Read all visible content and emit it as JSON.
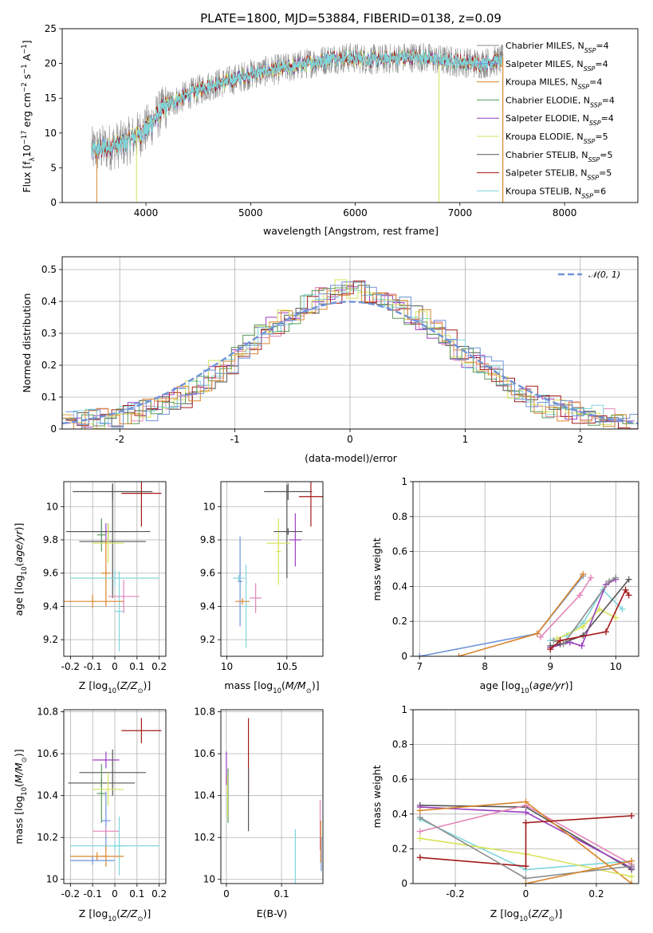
{
  "colors": {
    "chabrier_miles": "#8c8c8c",
    "salpeter_miles": "#6f93d8",
    "kroupa_miles": "#d9862c",
    "chabrier_elodie": "#5d9a5d",
    "salpeter_elodie": "#9a3fc0",
    "kroupa_elodie": "#d7e35a",
    "chabrier_stelib": "#555555",
    "salpeter_stelib": "#a31a1a",
    "kroupa_stelib": "#7fd6db",
    "pink": "#e384b8",
    "normal_curve": "#6f93d8"
  },
  "chart_data": [
    {
      "id": "spectrum",
      "type": "line",
      "title": "PLATE=1800, MJD=53884, FIBERID=0138, z=0.09",
      "xlabel": "wavelength [Angstrom, rest frame]",
      "ylabel": "Flux [f_λ10^-17 erg cm^-2 s^-1 A^-1]",
      "xlim": [
        3200,
        8700
      ],
      "ylim": [
        0,
        25
      ],
      "xticks": [
        4000,
        5000,
        6000,
        7000,
        8000
      ],
      "yticks": [
        0,
        5,
        10,
        15,
        20,
        25
      ],
      "grid": false,
      "legend_position": "top-right",
      "continuum": {
        "x": [
          3500,
          3800,
          4000,
          4200,
          4400,
          4600,
          4800,
          5000,
          5200,
          5400,
          5600,
          5800,
          6000,
          6200,
          6400,
          6600,
          6800,
          7000,
          7200,
          7400
        ],
        "y": [
          7.5,
          8.5,
          10.5,
          14.0,
          15.5,
          16.8,
          17.5,
          18.5,
          19.0,
          19.5,
          20.2,
          20.8,
          20.8,
          20.5,
          20.8,
          21.0,
          20.5,
          20.2,
          20.0,
          20.5
        ]
      },
      "series": [
        {
          "name": "Chabrier MILES, N_SSP=4",
          "key": "chabrier_miles"
        },
        {
          "name": "Salpeter MILES, N_SSP=4",
          "key": "salpeter_miles"
        },
        {
          "name": "Kroupa MILES, N_SSP=4",
          "key": "kroupa_miles"
        },
        {
          "name": "Chabrier ELODIE, N_SSP=4",
          "key": "chabrier_elodie"
        },
        {
          "name": "Salpeter ELODIE, N_SSP=4",
          "key": "salpeter_elodie"
        },
        {
          "name": "Kroupa ELODIE, N_SSP=5",
          "key": "kroupa_elodie"
        },
        {
          "name": "Chabrier STELIB, N_SSP=5",
          "key": "chabrier_stelib"
        },
        {
          "name": "Salpeter STELIB, N_SSP=5",
          "key": "salpeter_stelib"
        },
        {
          "name": "Kroupa STELIB, N_SSP=6",
          "key": "kroupa_stelib"
        }
      ]
    },
    {
      "id": "residuals",
      "type": "step",
      "xlabel": "(data-model)/error",
      "ylabel": "Normed distribution",
      "xlim": [
        -2.5,
        2.5
      ],
      "ylim": [
        0,
        0.54
      ],
      "xticks": [
        -2,
        -1,
        0,
        1,
        2
      ],
      "yticks": [
        0.0,
        0.1,
        0.2,
        0.3,
        0.4,
        0.5
      ],
      "grid": true,
      "legend_position": "top-right",
      "legend": [
        "𝒩(0, 1)"
      ],
      "bin_width": 0.1,
      "profile": [
        0.02,
        0.025,
        0.03,
        0.035,
        0.04,
        0.045,
        0.05,
        0.06,
        0.07,
        0.08,
        0.1,
        0.12,
        0.15,
        0.18,
        0.2,
        0.23,
        0.27,
        0.3,
        0.32,
        0.34,
        0.36,
        0.39,
        0.41,
        0.42,
        0.44,
        0.44,
        0.42,
        0.4,
        0.39,
        0.38,
        0.36,
        0.34,
        0.31,
        0.28,
        0.25,
        0.22,
        0.2,
        0.18,
        0.15,
        0.12,
        0.1,
        0.08,
        0.07,
        0.06,
        0.05,
        0.045,
        0.04,
        0.03,
        0.025,
        0.02
      ]
    },
    {
      "id": "age_vs_z",
      "type": "errorbar",
      "xlabel": "Z [log10(Z/Z☉)]",
      "ylabel": "age [log10(age/yr)]",
      "xlim": [
        -0.23,
        0.23
      ],
      "ylim": [
        9.1,
        10.15
      ],
      "xticks": [
        -0.2,
        -0.1,
        0.0,
        0.1,
        0.2
      ],
      "yticks": [
        9.2,
        9.4,
        9.6,
        9.8,
        10.0
      ],
      "grid": true,
      "points": [
        {
          "key": "chabrier_stelib",
          "x": -0.01,
          "xerr": 0.18,
          "y": 10.09,
          "yerr": 0.05
        },
        {
          "key": "salpeter_stelib",
          "x": 0.12,
          "xerr": 0.09,
          "y": 10.08,
          "yerr": 0.2
        },
        {
          "key": "salpeter_miles",
          "x": -0.06,
          "xerr": 0.15,
          "y": 9.85,
          "yerr": 0.06
        },
        {
          "key": "salpeter_elodie",
          "x": -0.04,
          "xerr": 0.06,
          "y": 9.85,
          "yerr": 0.05
        },
        {
          "key": "chabrier_elodie",
          "x": -0.06,
          "xerr": 0.02,
          "y": 9.83,
          "yerr": 0.1
        },
        {
          "key": "chabrier_stelib",
          "x": -0.03,
          "xerr": 0.19,
          "y": 9.85,
          "yerr": 0.05
        },
        {
          "key": "chabrier_stelib",
          "x": -0.01,
          "xerr": 0.15,
          "y": 9.79,
          "yerr": 0.34
        },
        {
          "key": "kroupa_elodie",
          "x": -0.03,
          "xerr": 0.07,
          "y": 9.78,
          "yerr": 0.12
        },
        {
          "key": "kroupa_miles",
          "x": -0.04,
          "xerr": 0.02,
          "y": 9.6,
          "yerr": 0.2
        },
        {
          "key": "kroupa_stelib",
          "x": 0.0,
          "xerr": 0.2,
          "y": 9.57,
          "yerr": 0.05
        },
        {
          "key": "kroupa_stelib",
          "x": 0.02,
          "xerr": 0.02,
          "y": 9.37,
          "yerr": 0.24
        },
        {
          "key": "pink",
          "x": 0.04,
          "xerr": 0.07,
          "y": 9.46,
          "yerr": 0.1
        },
        {
          "key": "kroupa_miles",
          "x": -0.1,
          "xerr": 0.14,
          "y": 9.43,
          "yerr": 0.04
        }
      ]
    },
    {
      "id": "age_vs_mass",
      "type": "errorbar",
      "xlabel": "mass [log10(M/M☉)]",
      "ylabel": "",
      "xlim": [
        9.95,
        10.8
      ],
      "ylim": [
        9.1,
        10.15
      ],
      "xticks": [
        10.0,
        10.5
      ],
      "yticks": [
        9.2,
        9.4,
        9.6,
        9.8,
        10.0
      ],
      "grid": true,
      "points": [
        {
          "key": "chabrier_stelib",
          "x": 10.51,
          "xerr": 0.2,
          "y": 10.09,
          "yerr": 0.05
        },
        {
          "key": "salpeter_stelib",
          "x": 10.7,
          "xerr": 0.1,
          "y": 10.06,
          "yerr": 0.18
        },
        {
          "key": "chabrier_stelib",
          "x": 10.5,
          "xerr": 0.02,
          "y": 9.85,
          "yerr": 0.28
        },
        {
          "key": "salpeter_elodie",
          "x": 10.57,
          "xerr": 0.05,
          "y": 9.8,
          "yerr": 0.16
        },
        {
          "key": "kroupa_elodie",
          "x": 10.43,
          "xerr": 0.02,
          "y": 9.73,
          "yerr": 0.2
        },
        {
          "key": "chabrier_stelib",
          "x": 10.51,
          "xerr": 0.12,
          "y": 9.85,
          "yerr": 0.02
        },
        {
          "key": "kroupa_elodie",
          "x": 10.43,
          "xerr": 0.1,
          "y": 9.78,
          "yerr": 0.02
        },
        {
          "key": "salpeter_miles",
          "x": 10.11,
          "xerr": 0.02,
          "y": 9.55,
          "yerr": 0.27
        },
        {
          "key": "kroupa_stelib",
          "x": 10.16,
          "xerr": 0.02,
          "y": 9.4,
          "yerr": 0.25
        },
        {
          "key": "kroupa_stelib",
          "x": 10.1,
          "xerr": 0.05,
          "y": 9.57,
          "yerr": 0.02
        },
        {
          "key": "pink",
          "x": 10.24,
          "xerr": 0.05,
          "y": 9.45,
          "yerr": 0.09
        },
        {
          "key": "kroupa_miles",
          "x": 10.13,
          "xerr": 0.06,
          "y": 9.43,
          "yerr": 0.02
        }
      ]
    },
    {
      "id": "weight_vs_age",
      "type": "line",
      "xlabel": "age [log10(age/yr)]",
      "ylabel": "mass weight",
      "xlim": [
        6.9,
        10.35
      ],
      "ylim": [
        0,
        1
      ],
      "xticks": [
        7,
        8,
        9,
        10
      ],
      "yticks": [
        0.0,
        0.2,
        0.4,
        0.6,
        0.8,
        1.0
      ],
      "grid": true,
      "series": [
        {
          "key": "salpeter_miles",
          "x": [
            7.0,
            8.8,
            9.5
          ],
          "y": [
            0.0,
            0.13,
            0.46
          ]
        },
        {
          "key": "kroupa_miles",
          "x": [
            7.6,
            8.8,
            9.5
          ],
          "y": [
            0.0,
            0.13,
            0.47
          ]
        },
        {
          "key": "pink",
          "x": [
            8.85,
            9.45,
            9.62
          ],
          "y": [
            0.11,
            0.35,
            0.45
          ]
        },
        {
          "key": "kroupa_stelib",
          "x": [
            9.0,
            9.25,
            9.5,
            9.8,
            10.1
          ],
          "y": [
            0.09,
            0.12,
            0.19,
            0.38,
            0.27
          ]
        },
        {
          "key": "kroupa_elodie",
          "x": [
            9.1,
            9.5,
            9.75,
            10.0
          ],
          "y": [
            0.1,
            0.17,
            0.27,
            0.22
          ]
        },
        {
          "key": "salpeter_elodie",
          "x": [
            9.0,
            9.3,
            9.48,
            9.85,
            10.0
          ],
          "y": [
            0.05,
            0.08,
            0.06,
            0.41,
            0.44
          ]
        },
        {
          "key": "chabrier_stelib",
          "x": [
            9.0,
            9.15,
            9.5,
            10.2
          ],
          "y": [
            0.06,
            0.07,
            0.12,
            0.44
          ]
        },
        {
          "key": "chabrier_miles",
          "x": [
            9.05,
            9.2,
            9.9,
            10.0
          ],
          "y": [
            0.09,
            0.07,
            0.43,
            0.45
          ]
        },
        {
          "key": "salpeter_stelib",
          "x": [
            9.0,
            9.15,
            9.85,
            10.15,
            10.2
          ],
          "y": [
            0.04,
            0.09,
            0.14,
            0.38,
            0.35
          ]
        }
      ]
    },
    {
      "id": "mass_vs_z",
      "type": "errorbar",
      "xlabel": "Z [log10(Z/Z☉)]",
      "ylabel": "mass [log10(M/M☉)]",
      "xlim": [
        -0.23,
        0.23
      ],
      "ylim": [
        9.98,
        10.81
      ],
      "xticks": [
        -0.2,
        -0.1,
        0.0,
        0.1,
        0.2
      ],
      "yticks": [
        10.0,
        10.2,
        10.4,
        10.6,
        10.8
      ],
      "grid": true,
      "points": [
        {
          "key": "salpeter_stelib",
          "x": 0.12,
          "xerr": 0.09,
          "y": 10.71,
          "yerr": 0.06
        },
        {
          "key": "salpeter_elodie",
          "x": -0.04,
          "xerr": 0.06,
          "y": 10.57,
          "yerr": 0.04
        },
        {
          "key": "chabrier_stelib",
          "x": -0.01,
          "xerr": 0.15,
          "y": 10.51,
          "yerr": 0.11
        },
        {
          "key": "chabrier_stelib",
          "x": -0.06,
          "xerr": 0.15,
          "y": 10.46,
          "yerr": 0.02
        },
        {
          "key": "chabrier_elodie",
          "x": -0.06,
          "xerr": 0.02,
          "y": 10.41,
          "yerr": 0.14
        },
        {
          "key": "kroupa_elodie",
          "x": -0.03,
          "xerr": 0.07,
          "y": 10.43,
          "yerr": 0.08
        },
        {
          "key": "salpeter_miles",
          "x": -0.04,
          "xerr": 0.02,
          "y": 10.28,
          "yerr": 0.14
        },
        {
          "key": "pink",
          "x": -0.04,
          "xerr": 0.06,
          "y": 10.23,
          "yerr": 0.02
        },
        {
          "key": "kroupa_stelib",
          "x": 0.02,
          "xerr": 0.02,
          "y": 10.16,
          "yerr": 0.14
        },
        {
          "key": "kroupa_stelib",
          "x": 0.0,
          "xerr": 0.2,
          "y": 10.16,
          "yerr": 0.02
        },
        {
          "key": "kroupa_miles",
          "x": -0.04,
          "xerr": 0.02,
          "y": 10.11,
          "yerr": 0.05
        },
        {
          "key": "kroupa_miles",
          "x": -0.08,
          "xerr": 0.12,
          "y": 10.11,
          "yerr": 0.02
        },
        {
          "key": "salpeter_miles",
          "x": -0.1,
          "xerr": 0.1,
          "y": 10.09,
          "yerr": 0.02
        }
      ]
    },
    {
      "id": "mass_vs_ebv",
      "type": "errorbar",
      "xlabel": "E(B-V)",
      "ylabel": "",
      "xlim": [
        -0.01,
        0.175
      ],
      "ylim": [
        9.98,
        10.81
      ],
      "xticks": [
        0.0,
        0.1
      ],
      "yticks": [
        10.0,
        10.2,
        10.4,
        10.6,
        10.8
      ],
      "grid": true,
      "points": [
        {
          "key": "salpeter_elodie",
          "x": 0.0,
          "xerr": 0.0,
          "y": 10.53,
          "yerr": 0.08
        },
        {
          "key": "chabrier_elodie",
          "x": 0.003,
          "xerr": 0.0,
          "y": 10.4,
          "yerr": 0.13
        },
        {
          "key": "kroupa_elodie",
          "x": 0.002,
          "xerr": 0.0,
          "y": 10.4,
          "yerr": 0.1
        },
        {
          "key": "salpeter_stelib",
          "x": 0.04,
          "xerr": 0.0,
          "y": 10.59,
          "yerr": 0.18
        },
        {
          "key": "chabrier_stelib",
          "x": 0.04,
          "xerr": 0.0,
          "y": 10.38,
          "yerr": 0.15
        },
        {
          "key": "kroupa_stelib",
          "x": 0.125,
          "xerr": 0.0,
          "y": 10.1,
          "yerr": 0.14
        },
        {
          "key": "pink",
          "x": 0.17,
          "xerr": 0.0,
          "y": 10.26,
          "yerr": 0.12
        },
        {
          "key": "salpeter_miles",
          "x": 0.172,
          "xerr": 0.0,
          "y": 10.12,
          "yerr": 0.08
        },
        {
          "key": "kroupa_miles",
          "x": 0.171,
          "xerr": 0.0,
          "y": 10.18,
          "yerr": 0.1
        }
      ]
    },
    {
      "id": "weight_vs_z",
      "type": "line",
      "xlabel": "Z [log10(Z/Z☉)]",
      "ylabel": "mass weight",
      "xlim": [
        -0.32,
        0.32
      ],
      "ylim": [
        0,
        1
      ],
      "xticks": [
        -0.2,
        0.0,
        0.2
      ],
      "yticks": [
        0.0,
        0.2,
        0.4,
        0.6,
        0.8,
        1.0
      ],
      "grid": true,
      "series": [
        {
          "key": "kroupa_stelib",
          "x": [
            -0.3,
            0.0,
            0.3
          ],
          "y": [
            0.37,
            0.08,
            0.13
          ]
        },
        {
          "key": "chabrier_stelib",
          "x": [
            -0.3,
            0.0,
            0.3
          ],
          "y": [
            0.45,
            0.44,
            0.08
          ]
        },
        {
          "key": "salpeter_elodie",
          "x": [
            -0.3,
            0.0,
            0.3
          ],
          "y": [
            0.44,
            0.41,
            0.09
          ]
        },
        {
          "key": "pink",
          "x": [
            -0.3,
            0.0,
            0.3
          ],
          "y": [
            0.3,
            0.45,
            0.11
          ]
        },
        {
          "key": "kroupa_miles",
          "x": [
            -0.3,
            0.0,
            0.3
          ],
          "y": [
            0.42,
            0.47,
            0.0
          ]
        },
        {
          "key": "kroupa_elodie",
          "x": [
            -0.3,
            0.0,
            0.3
          ],
          "y": [
            0.26,
            0.17,
            0.04
          ]
        },
        {
          "key": "salpeter_stelib",
          "x": [
            -0.3,
            0.0,
            0.0,
            0.3
          ],
          "y": [
            0.15,
            0.1,
            0.35,
            0.39
          ]
        },
        {
          "key": "chabrier_miles",
          "x": [
            -0.3,
            0.0,
            0.3
          ],
          "y": [
            0.38,
            0.03,
            0.1
          ]
        },
        {
          "key": "kroupa_miles",
          "x": [
            0.0,
            0.3
          ],
          "y": [
            0.0,
            0.13
          ]
        }
      ]
    }
  ]
}
